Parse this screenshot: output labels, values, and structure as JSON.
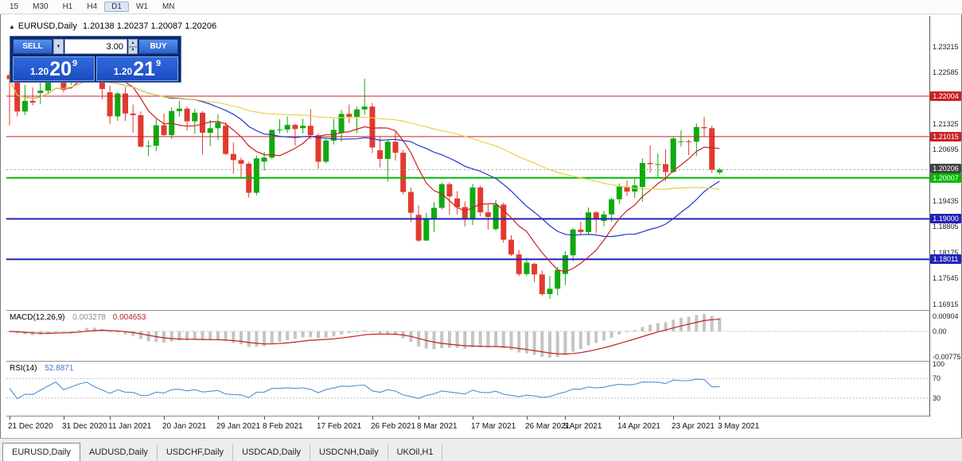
{
  "toolbar": {
    "timeframes": [
      "15",
      "M30",
      "H1",
      "H4",
      "D1",
      "W1",
      "MN"
    ],
    "active_timeframe": "D1"
  },
  "chart_title": {
    "collapse_icon": "▲",
    "symbol": "EURUSD,Daily",
    "ohlc": "1.20138 1.20237 1.20087 1.20206"
  },
  "trade_panel": {
    "sell_label": "SELL",
    "buy_label": "BUY",
    "volume": "3.00",
    "dropdown_icon": "▼",
    "spin_up_icon": "▲",
    "spin_down_icon": "▼",
    "bid": {
      "prefix": "1.20",
      "big": "20",
      "sup": "9"
    },
    "ask": {
      "prefix": "1.20",
      "big": "21",
      "sup": "9"
    }
  },
  "chart_data": {
    "type": "candlestick",
    "symbol": "EURUSD",
    "timeframe": "Daily",
    "ohlc_display": {
      "open": "1.20138",
      "high": "1.20237",
      "low": "1.20087",
      "close": "1.20206"
    },
    "ylim": [
      1.1677,
      1.2397
    ],
    "colors": {
      "up": "#10a910",
      "down": "#e23a2e",
      "ma_fast": "#cc2020",
      "ma_mid": "#2038c8",
      "ma_slow": "#e6d24a",
      "macd_hist": "#c4c4c4",
      "macd_signal": "#c02020",
      "rsi": "#4a90d8"
    },
    "y_ticks": [
      1.23215,
      1.22585,
      1.21325,
      1.20695,
      1.19435,
      1.18805,
      1.18175,
      1.17545,
      1.16915
    ],
    "h_lines": [
      {
        "value": 1.22004,
        "label": "1.22004",
        "color": "#cc2222",
        "width": 1
      },
      {
        "value": 1.21015,
        "label": "1.21015",
        "color": "#cc2222",
        "width": 1
      },
      {
        "value": 1.20007,
        "label": "1.20007",
        "color": "#00bb00",
        "width": 2
      },
      {
        "value": 1.19,
        "label": "1.19000",
        "color": "#2222bb",
        "width": 2
      },
      {
        "value": 1.18011,
        "label": "1.18011",
        "color": "#2222bb",
        "width": 2
      }
    ],
    "current_price": {
      "value": 1.20206,
      "label": "1.20206",
      "color": "#444444"
    },
    "moving_averages": [
      {
        "name": "fast",
        "period": 8,
        "color": "#cc2020"
      },
      {
        "name": "medium",
        "period": 21,
        "color": "#2038c8"
      },
      {
        "name": "slow",
        "period": 55,
        "color": "#e6d24a"
      }
    ],
    "x_labels": [
      {
        "label": "21 Dec 2020",
        "index": 0
      },
      {
        "label": "31 Dec 2020",
        "index": 7
      },
      {
        "label": "11 Jan 2021",
        "index": 13
      },
      {
        "label": "20 Jan 2021",
        "index": 20
      },
      {
        "label": "29 Jan 2021",
        "index": 27
      },
      {
        "label": "8 Feb 2021",
        "index": 33
      },
      {
        "label": "17 Feb 2021",
        "index": 40
      },
      {
        "label": "26 Feb 2021",
        "index": 47
      },
      {
        "label": "8 Mar 2021",
        "index": 53
      },
      {
        "label": "17 Mar 2021",
        "index": 60
      },
      {
        "label": "26 Mar 2021",
        "index": 67
      },
      {
        "label": "5 Apr 2021",
        "index": 72
      },
      {
        "label": "14 Apr 2021",
        "index": 79
      },
      {
        "label": "23 Apr 2021",
        "index": 86
      },
      {
        "label": "3 May 2021",
        "index": 92
      }
    ],
    "candles": [
      [
        1.2252,
        1.2262,
        1.2129,
        1.2242
      ],
      [
        1.2242,
        1.2251,
        1.2151,
        1.2163
      ],
      [
        1.2163,
        1.2228,
        1.2154,
        1.2189
      ],
      [
        1.2189,
        1.2222,
        1.2178,
        1.2185
      ],
      [
        1.2208,
        1.225,
        1.2181,
        1.2214
      ],
      [
        1.2214,
        1.2276,
        1.2206,
        1.225
      ],
      [
        1.225,
        1.2311,
        1.2246,
        1.2296
      ],
      [
        1.2296,
        1.231,
        1.221,
        1.2216
      ],
      [
        1.2239,
        1.2309,
        1.2228,
        1.225
      ],
      [
        1.225,
        1.2307,
        1.2245,
        1.2296
      ],
      [
        1.2296,
        1.2349,
        1.2266,
        1.2327
      ],
      [
        1.2327,
        1.2344,
        1.2245,
        1.227
      ],
      [
        1.227,
        1.2285,
        1.2193,
        1.2218
      ],
      [
        1.221,
        1.2226,
        1.2132,
        1.2151
      ],
      [
        1.2151,
        1.221,
        1.214,
        1.2207
      ],
      [
        1.2207,
        1.2223,
        1.214,
        1.2158
      ],
      [
        1.2158,
        1.218,
        1.2111,
        1.2154
      ],
      [
        1.2154,
        1.2163,
        1.2075,
        1.2077
      ],
      [
        1.2077,
        1.2092,
        1.2054,
        1.2079
      ],
      [
        1.2079,
        1.2145,
        1.2066,
        1.2129
      ],
      [
        1.2129,
        1.2158,
        1.2101,
        1.2105
      ],
      [
        1.2105,
        1.2173,
        1.2095,
        1.2164
      ],
      [
        1.2164,
        1.2189,
        1.215,
        1.217
      ],
      [
        1.217,
        1.2175,
        1.2116,
        1.2139
      ],
      [
        1.2139,
        1.217,
        1.2108,
        1.216
      ],
      [
        1.216,
        1.2164,
        1.2058,
        1.2111
      ],
      [
        1.2111,
        1.2142,
        1.2078,
        1.2122
      ],
      [
        1.2122,
        1.2156,
        1.2093,
        1.2136
      ],
      [
        1.2128,
        1.2137,
        1.2056,
        1.2059
      ],
      [
        1.2059,
        1.2087,
        1.2011,
        1.2044
      ],
      [
        1.2044,
        1.205,
        1.1999,
        1.2035
      ],
      [
        1.2035,
        1.204,
        1.1952,
        1.1964
      ],
      [
        1.1964,
        1.2055,
        1.1958,
        1.2048
      ],
      [
        1.204,
        1.2064,
        1.2018,
        1.205
      ],
      [
        1.205,
        1.2119,
        1.2046,
        1.2118
      ],
      [
        1.2118,
        1.2144,
        1.2109,
        1.2119
      ],
      [
        1.2119,
        1.2151,
        1.2111,
        1.213
      ],
      [
        1.213,
        1.2133,
        1.208,
        1.212
      ],
      [
        1.2122,
        1.2145,
        1.2109,
        1.2128
      ],
      [
        1.2128,
        1.2169,
        1.2095,
        1.2105
      ],
      [
        1.2105,
        1.211,
        1.2023,
        1.204
      ],
      [
        1.204,
        1.2096,
        1.2036,
        1.2092
      ],
      [
        1.2092,
        1.2145,
        1.2082,
        1.2118
      ],
      [
        1.211,
        1.2167,
        1.2089,
        1.2157
      ],
      [
        1.2157,
        1.218,
        1.2134,
        1.215
      ],
      [
        1.215,
        1.2175,
        1.211,
        1.2168
      ],
      [
        1.2168,
        1.2243,
        1.2155,
        1.2175
      ],
      [
        1.2175,
        1.2184,
        1.2061,
        1.2075
      ],
      [
        1.2068,
        1.2101,
        1.2026,
        1.2047
      ],
      [
        1.2047,
        1.2094,
        1.1991,
        1.2089
      ],
      [
        1.2089,
        1.2113,
        1.2043,
        1.2062
      ],
      [
        1.2062,
        1.2069,
        1.196,
        1.1966
      ],
      [
        1.1966,
        1.1977,
        1.1892,
        1.1915
      ],
      [
        1.191,
        1.1933,
        1.1844,
        1.1847
      ],
      [
        1.1847,
        1.1915,
        1.1846,
        1.19
      ],
      [
        1.19,
        1.1941,
        1.1868,
        1.1927
      ],
      [
        1.1927,
        1.1989,
        1.1923,
        1.1985
      ],
      [
        1.1985,
        1.1989,
        1.191,
        1.1955
      ],
      [
        1.195,
        1.1968,
        1.1911,
        1.1929
      ],
      [
        1.1929,
        1.1943,
        1.1882,
        1.19
      ],
      [
        1.19,
        1.1986,
        1.1885,
        1.1977
      ],
      [
        1.1977,
        1.1982,
        1.1906,
        1.1916
      ],
      [
        1.1916,
        1.1935,
        1.1874,
        1.1905
      ],
      [
        1.1875,
        1.1947,
        1.1871,
        1.1935
      ],
      [
        1.1935,
        1.194,
        1.1841,
        1.1849
      ],
      [
        1.1849,
        1.186,
        1.1809,
        1.1813
      ],
      [
        1.1813,
        1.1824,
        1.176,
        1.1765
      ],
      [
        1.1765,
        1.1805,
        1.1761,
        1.1793
      ],
      [
        1.179,
        1.1793,
        1.1745,
        1.1764
      ],
      [
        1.1764,
        1.1774,
        1.1712,
        1.1716
      ],
      [
        1.1716,
        1.176,
        1.1704,
        1.1729
      ],
      [
        1.1729,
        1.1783,
        1.1713,
        1.1775
      ],
      [
        1.1765,
        1.1821,
        1.1738,
        1.1811
      ],
      [
        1.1811,
        1.1878,
        1.1797,
        1.1874
      ],
      [
        1.1874,
        1.1893,
        1.1861,
        1.1868
      ],
      [
        1.1868,
        1.1928,
        1.1862,
        1.1916
      ],
      [
        1.1916,
        1.1919,
        1.1866,
        1.1899
      ],
      [
        1.1895,
        1.192,
        1.1882,
        1.1911
      ],
      [
        1.1911,
        1.1952,
        1.1893,
        1.1948
      ],
      [
        1.1948,
        1.1987,
        1.1936,
        1.1979
      ],
      [
        1.1979,
        1.1994,
        1.1956,
        1.1967
      ],
      [
        1.1967,
        1.1998,
        1.1951,
        1.1982
      ],
      [
        1.1978,
        1.2048,
        1.1942,
        1.2037
      ],
      [
        1.2037,
        1.208,
        1.2013,
        1.2034
      ],
      [
        1.2034,
        1.206,
        1.2001,
        1.2034
      ],
      [
        1.2034,
        1.207,
        1.1993,
        1.2015
      ],
      [
        1.2015,
        1.21,
        1.2012,
        1.2097
      ],
      [
        1.209,
        1.2117,
        1.2077,
        1.209
      ],
      [
        1.209,
        1.2094,
        1.2056,
        1.2089
      ],
      [
        1.2089,
        1.2134,
        1.2054,
        1.2125
      ],
      [
        1.2125,
        1.215,
        1.2102,
        1.2122
      ],
      [
        1.2122,
        1.2128,
        1.2012,
        1.202
      ],
      [
        1.20138,
        1.20237,
        1.20087,
        1.20206
      ]
    ],
    "indicators": {
      "macd": {
        "label": "MACD(12,26,9)",
        "value_main": "0.003278",
        "value_signal": "0.004653",
        "fast": 12,
        "slow": 26,
        "signal": 9,
        "axis": [
          "0.00904",
          "0.00",
          "-0.00775"
        ]
      },
      "rsi": {
        "label": "RSI(14)",
        "value": "52.8871",
        "period": 14,
        "levels": [
          70,
          30
        ],
        "axis": [
          "100",
          "70",
          "30"
        ]
      }
    }
  },
  "bottom_tabs": [
    {
      "label": "EURUSD,Daily",
      "active": true
    },
    {
      "label": "AUDUSD,Daily",
      "active": false
    },
    {
      "label": "USDCHF,Daily",
      "active": false
    },
    {
      "label": "USDCAD,Daily",
      "active": false
    },
    {
      "label": "USDCNH,Daily",
      "active": false
    },
    {
      "label": "UKOil,H1",
      "active": false
    }
  ]
}
